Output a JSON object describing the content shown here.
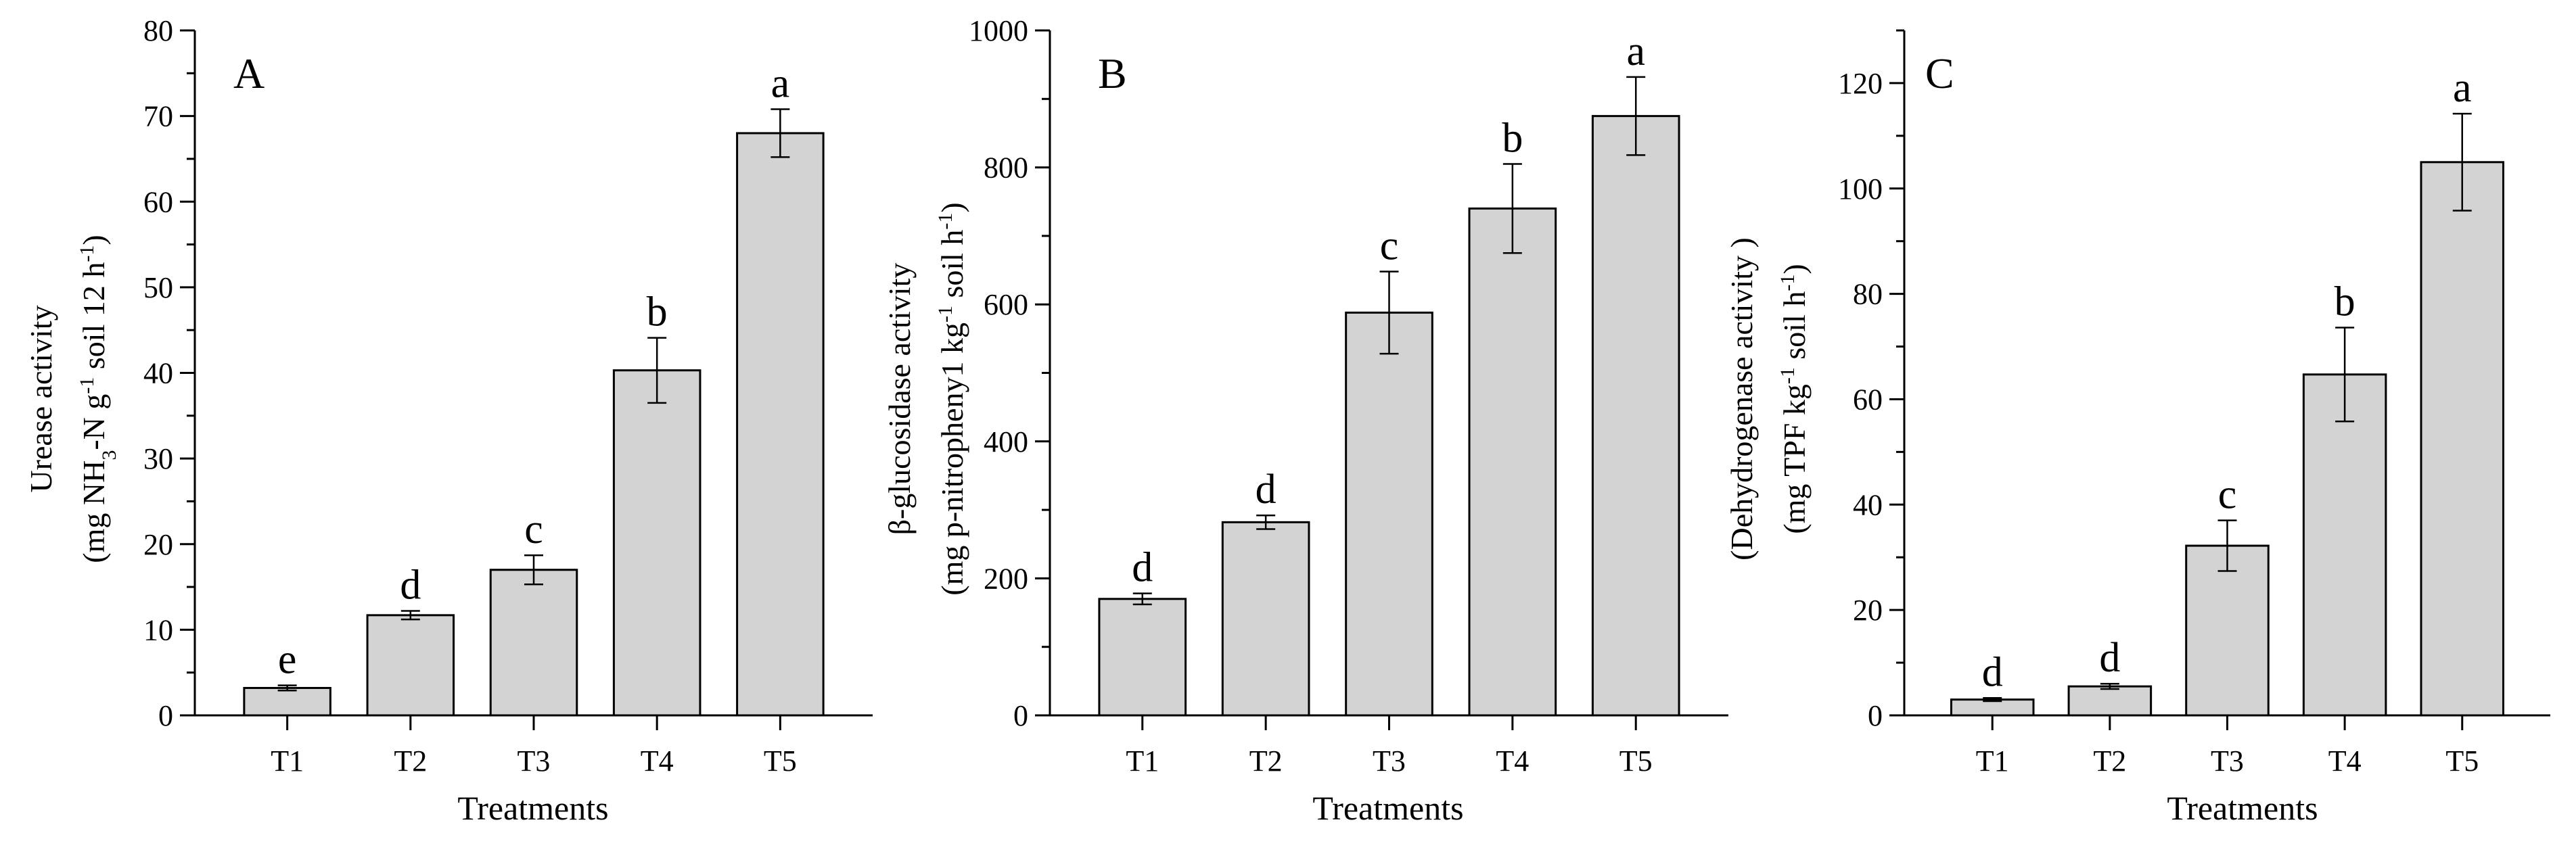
{
  "chart_data": [
    {
      "panel": "A",
      "type": "bar",
      "categories": [
        "T1",
        "T2",
        "T3",
        "T4",
        "T5"
      ],
      "values": [
        3.2,
        11.7,
        17.0,
        40.3,
        68.0
      ],
      "errors": [
        0.3,
        0.5,
        1.7,
        3.8,
        2.8
      ],
      "letters": [
        "e",
        "d",
        "c",
        "b",
        "a"
      ],
      "xlabel": "Treatments",
      "ylabel": {
        "line1": "Urease activity",
        "line2_a": "(mg NH",
        "line2_sub": "3",
        "line2_b": "-N g",
        "line2_sup": "-1",
        "line2_c": " soil 12 h",
        "line2_sup2": "-1",
        "line2_d": ")"
      },
      "ylim": [
        0,
        80
      ],
      "yticks": [
        0,
        10,
        20,
        30,
        40,
        50,
        60,
        70,
        80
      ],
      "minor_step": 5,
      "tick_labels": [
        "0",
        "10",
        "20",
        "30",
        "40",
        "50",
        "60",
        "70",
        "80"
      ]
    },
    {
      "panel": "B",
      "type": "bar",
      "categories": [
        "T1",
        "T2",
        "T3",
        "T4",
        "T5"
      ],
      "values": [
        170,
        282,
        588,
        740,
        875
      ],
      "errors": [
        8,
        10,
        60,
        65,
        57
      ],
      "letters": [
        "d",
        "d",
        "c",
        "b",
        "a"
      ],
      "xlabel": "Treatments",
      "ylabel": {
        "line1": "β-glucosidase activity",
        "line2_a": "(mg p-nitropheny1 kg",
        "line2_sup": "-1",
        "line2_b": " soil h",
        "line2_sup2": "-1",
        "line2_c": ")"
      },
      "ylim": [
        0,
        1000
      ],
      "yticks": [
        0,
        200,
        400,
        600,
        800,
        1000
      ],
      "minor_step": 100,
      "tick_labels": [
        "0",
        "200",
        "400",
        "600",
        "800",
        "1000"
      ]
    },
    {
      "panel": "C",
      "type": "bar",
      "categories": [
        "T1",
        "T2",
        "T3",
        "T4",
        "T5"
      ],
      "values": [
        3.0,
        5.5,
        32.2,
        64.7,
        105.0
      ],
      "errors": [
        0.3,
        0.5,
        4.8,
        8.9,
        9.2
      ],
      "letters": [
        "d",
        "d",
        "c",
        "b",
        "a"
      ],
      "xlabel": "Treatments",
      "ylabel": {
        "line1": "(Dehydrogenase activity )",
        "line2_a": "(mg TPF kg",
        "line2_sup": "-1",
        "line2_b": " soil h",
        "line2_sup2": "-1",
        "line2_c": ")"
      },
      "ylim": [
        0,
        130
      ],
      "yticks": [
        0,
        20,
        40,
        60,
        80,
        100,
        120
      ],
      "minor_step": 10,
      "tick_labels": [
        "0",
        "20",
        "40",
        "60",
        "80",
        "100",
        "120"
      ]
    }
  ],
  "colors": {
    "bar_fill": "#d3d3d3",
    "stroke": "#000000",
    "background": "#ffffff"
  }
}
